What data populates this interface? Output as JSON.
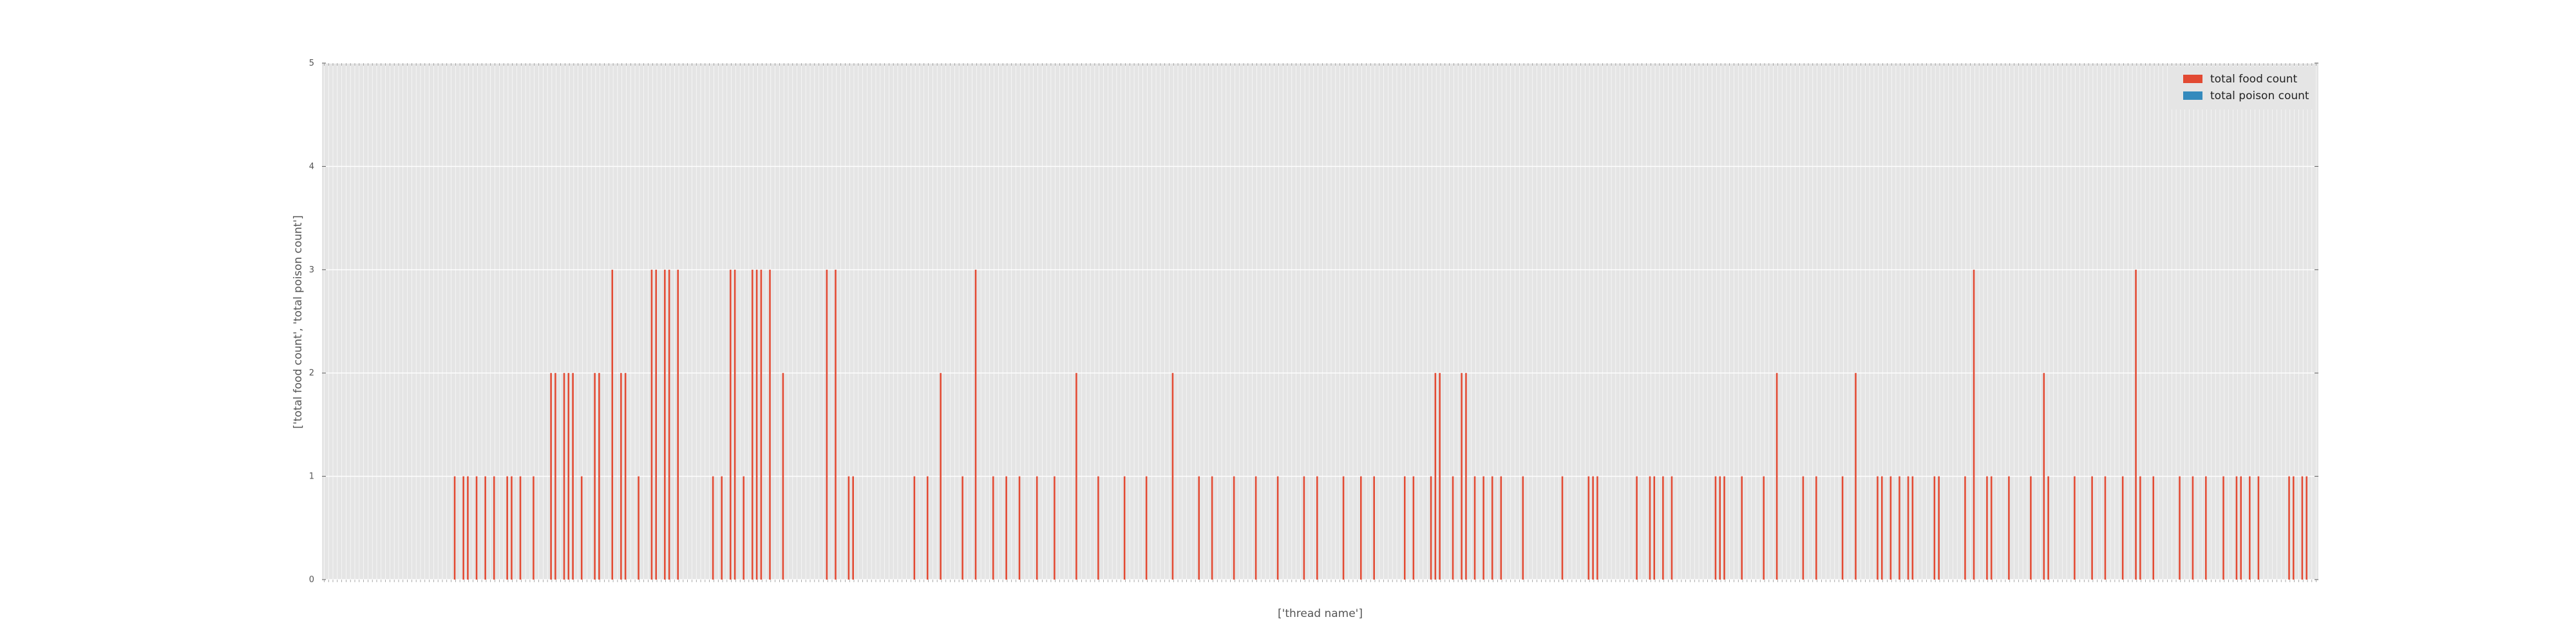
{
  "chart_data": {
    "type": "bar",
    "xlabel": "['thread name']",
    "ylabel": "['total food count', 'total poison count']",
    "ylim": [
      0,
      5
    ],
    "yticks": [
      0,
      1,
      2,
      3,
      4,
      5
    ],
    "grid": true,
    "legend_position": "top-right",
    "n_categories": 456,
    "series": [
      {
        "name": "total food count",
        "color": "#E24A33",
        "nonzero": [
          [
            30,
            1
          ],
          [
            32,
            1
          ],
          [
            33,
            1
          ],
          [
            35,
            1
          ],
          [
            37,
            1
          ],
          [
            39,
            1
          ],
          [
            42,
            1
          ],
          [
            43,
            1
          ],
          [
            45,
            1
          ],
          [
            48,
            1
          ],
          [
            52,
            2
          ],
          [
            53,
            2
          ],
          [
            55,
            2
          ],
          [
            56,
            2
          ],
          [
            57,
            2
          ],
          [
            59,
            1
          ],
          [
            62,
            2
          ],
          [
            63,
            2
          ],
          [
            66,
            3
          ],
          [
            68,
            2
          ],
          [
            69,
            2
          ],
          [
            72,
            1
          ],
          [
            75,
            3
          ],
          [
            76,
            3
          ],
          [
            78,
            3
          ],
          [
            79,
            3
          ],
          [
            81,
            3
          ],
          [
            89,
            1
          ],
          [
            91,
            1
          ],
          [
            93,
            3
          ],
          [
            94,
            3
          ],
          [
            96,
            1
          ],
          [
            98,
            3
          ],
          [
            99,
            3
          ],
          [
            100,
            3
          ],
          [
            102,
            3
          ],
          [
            105,
            2
          ],
          [
            115,
            3
          ],
          [
            117,
            3
          ],
          [
            120,
            1
          ],
          [
            121,
            1
          ],
          [
            135,
            1
          ],
          [
            138,
            1
          ],
          [
            141,
            2
          ],
          [
            146,
            1
          ],
          [
            149,
            3
          ],
          [
            153,
            1
          ],
          [
            156,
            1
          ],
          [
            159,
            1
          ],
          [
            163,
            1
          ],
          [
            167,
            1
          ],
          [
            172,
            2
          ],
          [
            177,
            1
          ],
          [
            183,
            1
          ],
          [
            188,
            1
          ],
          [
            194,
            2
          ],
          [
            200,
            1
          ],
          [
            203,
            1
          ],
          [
            208,
            1
          ],
          [
            213,
            1
          ],
          [
            218,
            1
          ],
          [
            224,
            1
          ],
          [
            227,
            1
          ],
          [
            233,
            1
          ],
          [
            237,
            1
          ],
          [
            240,
            1
          ],
          [
            247,
            1
          ],
          [
            249,
            1
          ],
          [
            253,
            1
          ],
          [
            254,
            2
          ],
          [
            255,
            2
          ],
          [
            258,
            1
          ],
          [
            260,
            2
          ],
          [
            261,
            2
          ],
          [
            263,
            1
          ],
          [
            265,
            1
          ],
          [
            267,
            1
          ],
          [
            269,
            1
          ],
          [
            274,
            1
          ],
          [
            283,
            1
          ],
          [
            289,
            1
          ],
          [
            290,
            1
          ],
          [
            291,
            1
          ],
          [
            300,
            1
          ],
          [
            303,
            1
          ],
          [
            304,
            1
          ],
          [
            306,
            1
          ],
          [
            308,
            1
          ],
          [
            318,
            1
          ],
          [
            319,
            1
          ],
          [
            320,
            1
          ],
          [
            324,
            1
          ],
          [
            329,
            1
          ],
          [
            332,
            2
          ],
          [
            338,
            1
          ],
          [
            341,
            1
          ],
          [
            347,
            1
          ],
          [
            350,
            2
          ],
          [
            355,
            1
          ],
          [
            356,
            1
          ],
          [
            358,
            1
          ],
          [
            360,
            1
          ],
          [
            362,
            1
          ],
          [
            363,
            1
          ],
          [
            368,
            1
          ],
          [
            369,
            1
          ],
          [
            375,
            1
          ],
          [
            377,
            3
          ],
          [
            380,
            1
          ],
          [
            381,
            1
          ],
          [
            385,
            1
          ],
          [
            390,
            1
          ],
          [
            393,
            2
          ],
          [
            394,
            1
          ],
          [
            400,
            1
          ],
          [
            404,
            1
          ],
          [
            407,
            1
          ],
          [
            411,
            1
          ],
          [
            414,
            3
          ],
          [
            415,
            1
          ],
          [
            418,
            1
          ],
          [
            424,
            1
          ],
          [
            427,
            1
          ],
          [
            430,
            1
          ],
          [
            434,
            1
          ],
          [
            437,
            1
          ],
          [
            438,
            1
          ],
          [
            440,
            1
          ],
          [
            442,
            1
          ],
          [
            449,
            1
          ],
          [
            450,
            1
          ],
          [
            452,
            1
          ],
          [
            453,
            1
          ]
        ]
      },
      {
        "name": "total poison count",
        "color": "#348ABD",
        "nonzero": []
      }
    ]
  }
}
